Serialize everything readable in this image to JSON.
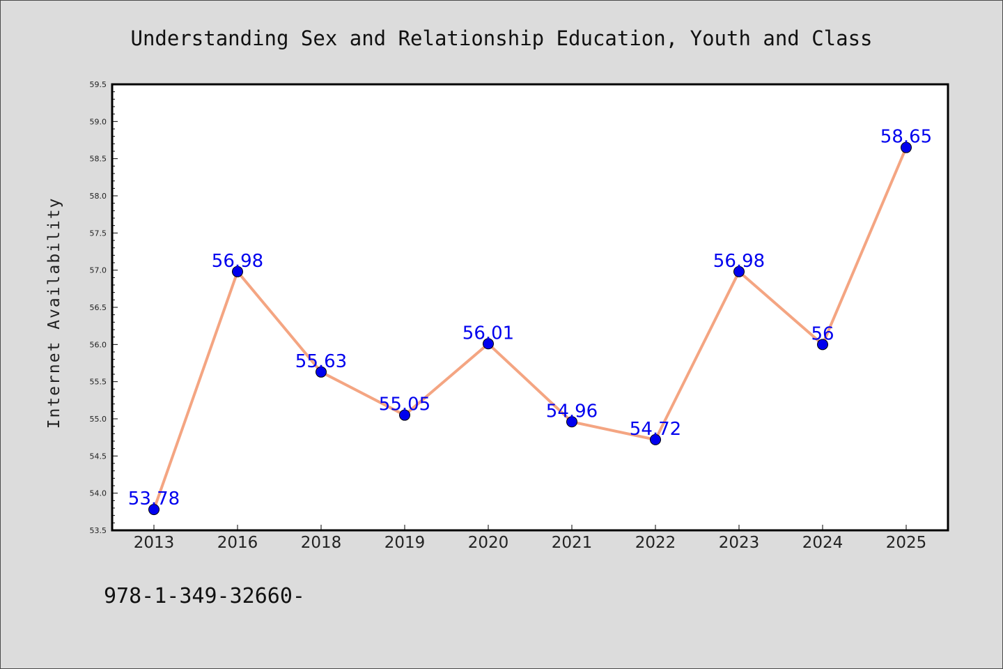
{
  "chart_data": {
    "type": "line",
    "title": "Understanding Sex and Relationship Education, Youth and Class",
    "xlabel": "",
    "ylabel": "Internet Availability",
    "categories": [
      "2013",
      "2016",
      "2018",
      "2019",
      "2020",
      "2021",
      "2022",
      "2023",
      "2024",
      "2025"
    ],
    "series": [
      {
        "values": [
          53.78,
          56.98,
          55.63,
          55.05,
          56.01,
          54.96,
          54.72,
          56.98,
          56,
          58.65
        ],
        "labels": [
          "53.78",
          "56.98",
          "55.63",
          "55.05",
          "56.01",
          "54.96",
          "54.72",
          "56.98",
          "56",
          "58.65"
        ]
      }
    ],
    "ylim": [
      53.5,
      59.5
    ],
    "yticks": [
      "53.5",
      "54.0",
      "54.5",
      "55.0",
      "55.5",
      "56.0",
      "56.5",
      "57.0",
      "57.5",
      "58.0",
      "58.5",
      "59.0",
      "59.5"
    ],
    "grid": false,
    "legend": "none",
    "colors": {
      "line": "#f4a582",
      "marker": "#0000ee",
      "data_label": "#0000ee",
      "background": "#dcdcdc",
      "plot_background": "#ffffff"
    }
  },
  "footer": {
    "isbn": "978-1-349-32660-"
  }
}
